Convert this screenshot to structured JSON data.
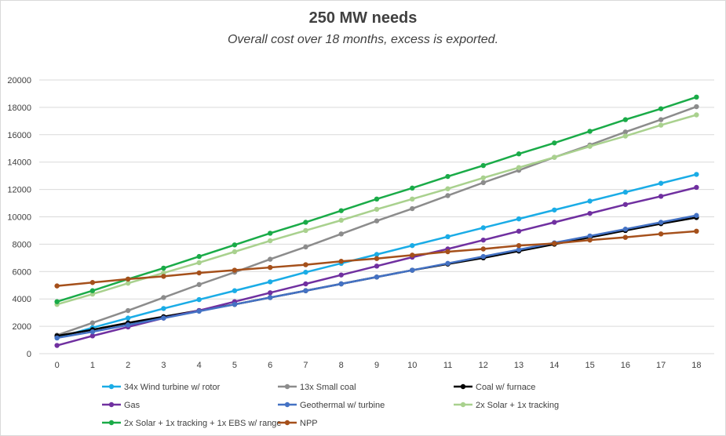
{
  "chart_data": {
    "type": "line",
    "title": "250 MW needs",
    "subtitle": "Overall cost over 18 months, excess is exported.",
    "xlabel": "",
    "ylabel": "",
    "x": [
      0,
      1,
      2,
      3,
      4,
      5,
      6,
      7,
      8,
      9,
      10,
      11,
      12,
      13,
      14,
      15,
      16,
      17,
      18
    ],
    "ylim": [
      0,
      20000
    ],
    "yticks": [
      0,
      2000,
      4000,
      6000,
      8000,
      10000,
      12000,
      14000,
      16000,
      18000,
      20000
    ],
    "grid": true,
    "legend_position": "bottom",
    "series": [
      {
        "name": "34x Wind turbine w/ rotor",
        "color": "#1aace6",
        "values": [
          1150,
          1900,
          2600,
          3300,
          3950,
          4600,
          5250,
          5950,
          6600,
          7250,
          7900,
          8550,
          9200,
          9850,
          10500,
          11150,
          11800,
          12450,
          13100
        ]
      },
      {
        "name": "13x Small coal",
        "color": "#8c8c8c",
        "values": [
          1350,
          2250,
          3150,
          4100,
          5050,
          5950,
          6900,
          7800,
          8750,
          9700,
          10600,
          11550,
          12500,
          13400,
          14350,
          15250,
          16200,
          17100,
          18050
        ]
      },
      {
        "name": "Coal w/ furnace",
        "color": "#000000",
        "values": [
          1300,
          1750,
          2250,
          2700,
          3150,
          3600,
          4100,
          4600,
          5100,
          5600,
          6100,
          6550,
          7000,
          7500,
          8000,
          8500,
          9000,
          9500,
          9950
        ]
      },
      {
        "name": "Gas",
        "color": "#7030a0",
        "values": [
          600,
          1300,
          1950,
          2600,
          3150,
          3800,
          4450,
          5100,
          5750,
          6400,
          7050,
          7650,
          8300,
          8950,
          9600,
          10250,
          10900,
          11500,
          12150
        ]
      },
      {
        "name": "Geothermal w/ turbine",
        "color": "#4472c4",
        "values": [
          1150,
          1600,
          2100,
          2600,
          3100,
          3600,
          4100,
          4600,
          5100,
          5600,
          6100,
          6600,
          7100,
          7600,
          8100,
          8600,
          9100,
          9600,
          10100
        ]
      },
      {
        "name": "2x Solar + 1x tracking",
        "color": "#a9d18e",
        "values": [
          3600,
          4350,
          5150,
          5900,
          6650,
          7450,
          8250,
          9000,
          9750,
          10550,
          11300,
          12050,
          12850,
          13600,
          14350,
          15150,
          15900,
          16700,
          17450
        ]
      },
      {
        "name": "2x Solar + 1x tracking + 1x EBS w/ range",
        "color": "#1aab48",
        "values": [
          3800,
          4600,
          5450,
          6250,
          7100,
          7950,
          8800,
          9600,
          10450,
          11300,
          12100,
          12950,
          13750,
          14600,
          15400,
          16250,
          17100,
          17900,
          18750
        ]
      },
      {
        "name": "NPP",
        "color": "#a5501b",
        "values": [
          4950,
          5200,
          5450,
          5650,
          5900,
          6100,
          6300,
          6500,
          6750,
          6950,
          7200,
          7450,
          7650,
          7900,
          8050,
          8300,
          8500,
          8750,
          8950
        ]
      }
    ]
  }
}
